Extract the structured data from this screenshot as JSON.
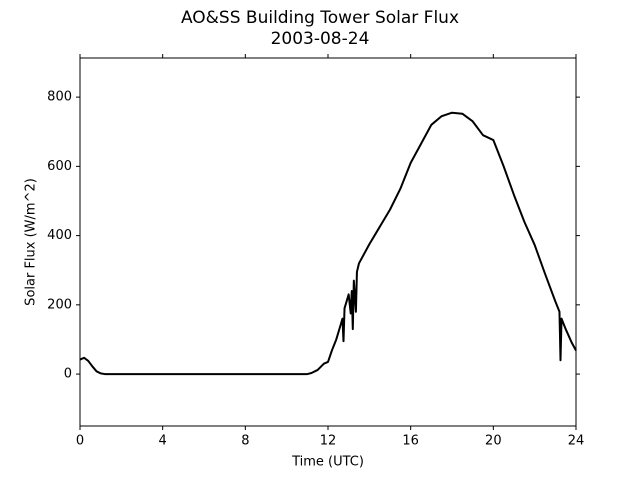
{
  "chart_data": {
    "type": "line",
    "title": "AO&SS Building Tower Solar Flux",
    "subtitle": "2003-08-24",
    "x_label": "Time (UTC)",
    "y_label": "Solar Flux (W/m^2)",
    "series": [
      {
        "name": "Solar Flux",
        "color": "#000000",
        "x": [
          0,
          0.2,
          0.4,
          0.6,
          0.8,
          1.0,
          1.2,
          2,
          4,
          6,
          8,
          10,
          11,
          11.2,
          11.5,
          11.8,
          12.0,
          12.2,
          12.4,
          12.6,
          12.7,
          12.75,
          12.8,
          13.0,
          13.1,
          13.15,
          13.2,
          13.25,
          13.35,
          13.4,
          13.5,
          14,
          14.5,
          15,
          15.5,
          16,
          16.5,
          17,
          17.5,
          18,
          18.5,
          19,
          19.5,
          20,
          20.5,
          21,
          21.5,
          22,
          22.5,
          23,
          23.2,
          23.25,
          23.3,
          23.5,
          23.8,
          24
        ],
        "values": [
          42,
          47,
          38,
          22,
          8,
          2,
          0,
          0,
          0,
          0,
          0,
          0,
          0,
          3,
          12,
          30,
          35,
          70,
          100,
          140,
          160,
          95,
          190,
          230,
          175,
          240,
          130,
          270,
          180,
          295,
          320,
          375,
          425,
          475,
          535,
          610,
          665,
          720,
          745,
          755,
          752,
          730,
          690,
          676,
          600,
          517,
          440,
          373,
          290,
          210,
          180,
          40,
          160,
          130,
          90,
          68
        ]
      }
    ],
    "xlim": [
      0,
      24
    ],
    "xticks": [
      0,
      4,
      8,
      12,
      16,
      20,
      24
    ],
    "ylim": [
      -150,
      913
    ],
    "yticks": [
      0,
      200,
      400,
      600,
      800
    ]
  }
}
